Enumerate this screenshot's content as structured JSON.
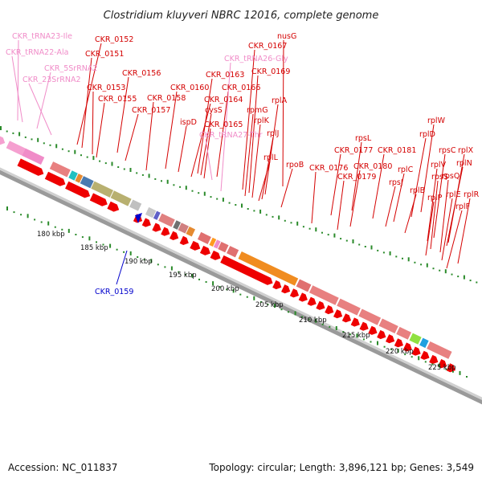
{
  "title": "Clostridium kluyveri NBRC 12016, complete genome",
  "footer": {
    "accession": "Accession: NC_011837",
    "summary": "Topology: circular; Length: 3,896,121 bp; Genes: 3,549"
  },
  "ticks": [
    "180 kbp",
    "185 kbp",
    "190 kbp",
    "195 kbp",
    "200 kbp",
    "205 kbp",
    "210 kbp",
    "215 kbp",
    "220 kbp",
    "225 kbp"
  ],
  "colors": {
    "cds": "#ee0000",
    "rrna": "#f5a0d0",
    "trna": "#f08cc8",
    "reverse": "#0000cc",
    "gc": "#2a8a2a"
  },
  "gene_labels": [
    {
      "text": "CKR_tRNA23-Ile",
      "kind": "pink"
    },
    {
      "text": "CKR_tRNA22-Ala",
      "kind": "pink"
    },
    {
      "text": "CKR_5SrRNA2",
      "kind": "pink"
    },
    {
      "text": "CKR_23SrRNA2",
      "kind": "pink"
    },
    {
      "text": "CKR_0152",
      "kind": "red"
    },
    {
      "text": "CKR_0151",
      "kind": "red"
    },
    {
      "text": "CKR_0156",
      "kind": "red"
    },
    {
      "text": "CKR_0153",
      "kind": "red"
    },
    {
      "text": "CKR_0155",
      "kind": "red"
    },
    {
      "text": "CKR_0157",
      "kind": "red"
    },
    {
      "text": "CKR_0160",
      "kind": "red"
    },
    {
      "text": "CKR_0158",
      "kind": "red"
    },
    {
      "text": "ispD",
      "kind": "red"
    },
    {
      "text": "CKR_0163",
      "kind": "red"
    },
    {
      "text": "cysS",
      "kind": "red"
    },
    {
      "text": "CKR_0164",
      "kind": "red"
    },
    {
      "text": "CKR_0166",
      "kind": "red"
    },
    {
      "text": "CKR_0165",
      "kind": "red"
    },
    {
      "text": "CKR_tRNA27-Thr",
      "kind": "pink"
    },
    {
      "text": "nusG",
      "kind": "red"
    },
    {
      "text": "CKR_0167",
      "kind": "red"
    },
    {
      "text": "CKR_tRNA26-Gly",
      "kind": "pink"
    },
    {
      "text": "CKR_0169",
      "kind": "red"
    },
    {
      "text": "rplA",
      "kind": "red"
    },
    {
      "text": "rpmG",
      "kind": "red"
    },
    {
      "text": "rplK",
      "kind": "red"
    },
    {
      "text": "rplJ",
      "kind": "red"
    },
    {
      "text": "rplL",
      "kind": "red"
    },
    {
      "text": "rpoB",
      "kind": "red"
    },
    {
      "text": "rpsL",
      "kind": "red"
    },
    {
      "text": "CKR_0177",
      "kind": "red"
    },
    {
      "text": "CKR_0181",
      "kind": "red"
    },
    {
      "text": "CKR_0176",
      "kind": "red"
    },
    {
      "text": "CKR_0180",
      "kind": "red"
    },
    {
      "text": "CKR_0179",
      "kind": "red"
    },
    {
      "text": "rplW",
      "kind": "red"
    },
    {
      "text": "rplD",
      "kind": "red"
    },
    {
      "text": "rplC",
      "kind": "red"
    },
    {
      "text": "rpsJ",
      "kind": "red"
    },
    {
      "text": "rplB",
      "kind": "red"
    },
    {
      "text": "rpsC",
      "kind": "red"
    },
    {
      "text": "rplX",
      "kind": "red"
    },
    {
      "text": "rplV",
      "kind": "red"
    },
    {
      "text": "rplN",
      "kind": "red"
    },
    {
      "text": "rpsS",
      "kind": "red"
    },
    {
      "text": "rpsQ",
      "kind": "red"
    },
    {
      "text": "rplP",
      "kind": "red"
    },
    {
      "text": "rplE",
      "kind": "red"
    },
    {
      "text": "rplR",
      "kind": "red"
    },
    {
      "text": "rplF",
      "kind": "red"
    },
    {
      "text": "CKR_0159",
      "kind": "blue"
    }
  ]
}
